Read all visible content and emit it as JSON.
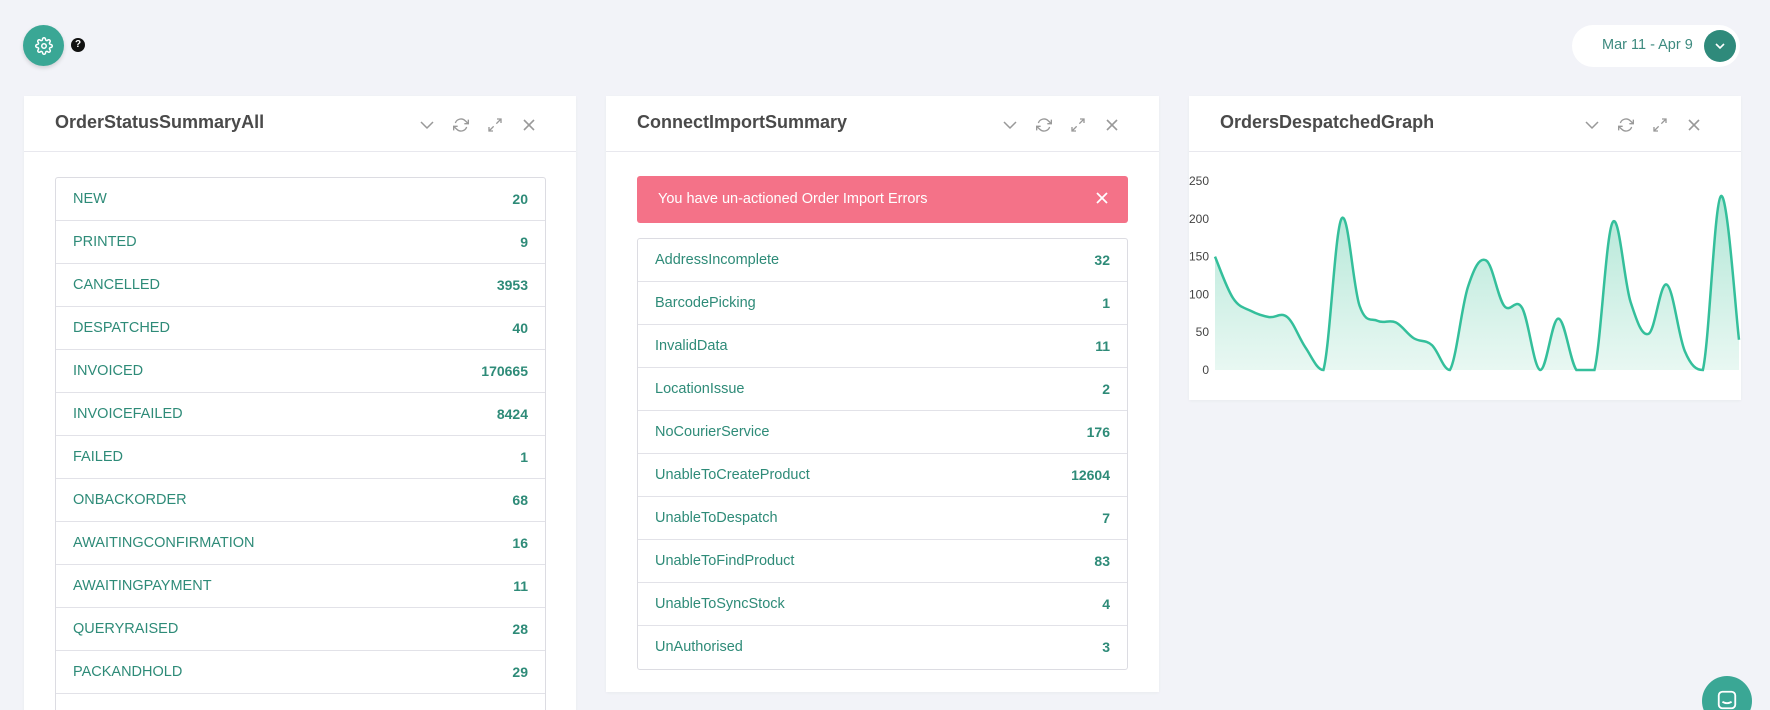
{
  "header": {
    "date_range": "Mar 11 - Apr 9",
    "help_symbol": "?"
  },
  "panels": {
    "order_status": {
      "title": "OrderStatusSummaryAll",
      "rows": [
        {
          "label": "NEW",
          "value": "20"
        },
        {
          "label": "PRINTED",
          "value": "9"
        },
        {
          "label": "CANCELLED",
          "value": "3953"
        },
        {
          "label": "DESPATCHED",
          "value": "40"
        },
        {
          "label": "INVOICED",
          "value": "170665"
        },
        {
          "label": "INVOICEFAILED",
          "value": "8424"
        },
        {
          "label": "FAILED",
          "value": "1"
        },
        {
          "label": "ONBACKORDER",
          "value": "68"
        },
        {
          "label": "AWAITINGCONFIRMATION",
          "value": "16"
        },
        {
          "label": "AWAITINGPAYMENT",
          "value": "11"
        },
        {
          "label": "QUERYRAISED",
          "value": "28"
        },
        {
          "label": "PACKANDHOLD",
          "value": "29"
        }
      ]
    },
    "connect_import": {
      "title": "ConnectImportSummary",
      "alert_text": "You have un-actioned Order Import Errors",
      "rows": [
        {
          "label": "AddressIncomplete",
          "value": "32"
        },
        {
          "label": "BarcodePicking",
          "value": "1"
        },
        {
          "label": "InvalidData",
          "value": "11"
        },
        {
          "label": "LocationIssue",
          "value": "2"
        },
        {
          "label": "NoCourierService",
          "value": "176"
        },
        {
          "label": "UnableToCreateProduct",
          "value": "12604"
        },
        {
          "label": "UnableToDespatch",
          "value": "7"
        },
        {
          "label": "UnableToFindProduct",
          "value": "83"
        },
        {
          "label": "UnableToSyncStock",
          "value": "4"
        },
        {
          "label": "UnAuthorised",
          "value": "3"
        }
      ]
    },
    "orders_despatched": {
      "title": "OrdersDespatchedGraph"
    }
  },
  "icons": {
    "settings": "gear-icon",
    "help": "help-icon",
    "date_toggle": "chevron-down-icon",
    "collapse": "chevron-down-icon",
    "refresh": "refresh-icon",
    "expand": "expand-icon",
    "close": "close-icon",
    "chat": "chat-icon"
  },
  "colors": {
    "accent": "#3aa795",
    "link_text": "#2e8b78",
    "alert_bg": "#f47288",
    "chart_line": "#34bf9b",
    "chart_fill": "#d4f2e8"
  },
  "chart_data": {
    "type": "area",
    "title": "",
    "xlabel": "",
    "ylabel": "",
    "ylim": [
      0,
      250
    ],
    "yticks": [
      0,
      50,
      100,
      150,
      200,
      250
    ],
    "x": [
      0,
      1,
      2,
      3,
      4,
      5,
      6,
      7,
      8,
      9,
      10,
      11,
      12,
      13,
      14,
      15,
      16,
      17,
      18,
      19,
      20,
      21,
      22,
      23,
      24,
      25,
      26,
      27,
      28,
      29
    ],
    "series": [
      {
        "values": [
          150,
          95,
          78,
          70,
          70,
          30,
          0,
          200,
          85,
          65,
          63,
          42,
          33,
          0,
          110,
          145,
          85,
          82,
          0,
          68,
          0,
          0,
          195,
          90,
          48,
          113,
          25,
          0,
          230,
          40
        ]
      }
    ],
    "grid": false,
    "legend": "none"
  }
}
